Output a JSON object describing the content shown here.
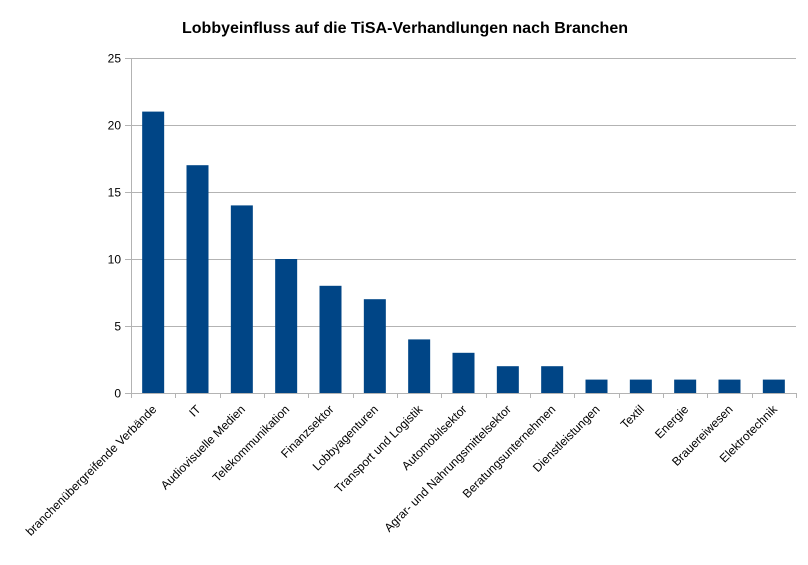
{
  "chart_data": {
    "type": "bar",
    "title": "Lobbyeinfluss auf die TiSA-Verhandlungen nach Branchen",
    "xlabel": "",
    "ylabel": "",
    "ylim": [
      0,
      25
    ],
    "yticks": [
      0,
      5,
      10,
      15,
      20,
      25
    ],
    "grid": true,
    "legend": "none",
    "bar_color": "#004586",
    "categories": [
      "branchenübergreifende Verbände",
      "IT",
      "Audiovisuelle Medien",
      "Telekommunikation",
      "Finanzsektor",
      "Lobbyagenturen",
      "Transport und Logistik",
      "Automobilsektor",
      "Agrar- und Nahrungsmittelsektor",
      "Beratungsunternehmen",
      "Dienstleistungen",
      "Textil",
      "Energie",
      "Brauereiwesen",
      "Elektrotechnik"
    ],
    "values": [
      21,
      17,
      14,
      10,
      8,
      7,
      4,
      3,
      2,
      2,
      1,
      1,
      1,
      1,
      1
    ]
  }
}
